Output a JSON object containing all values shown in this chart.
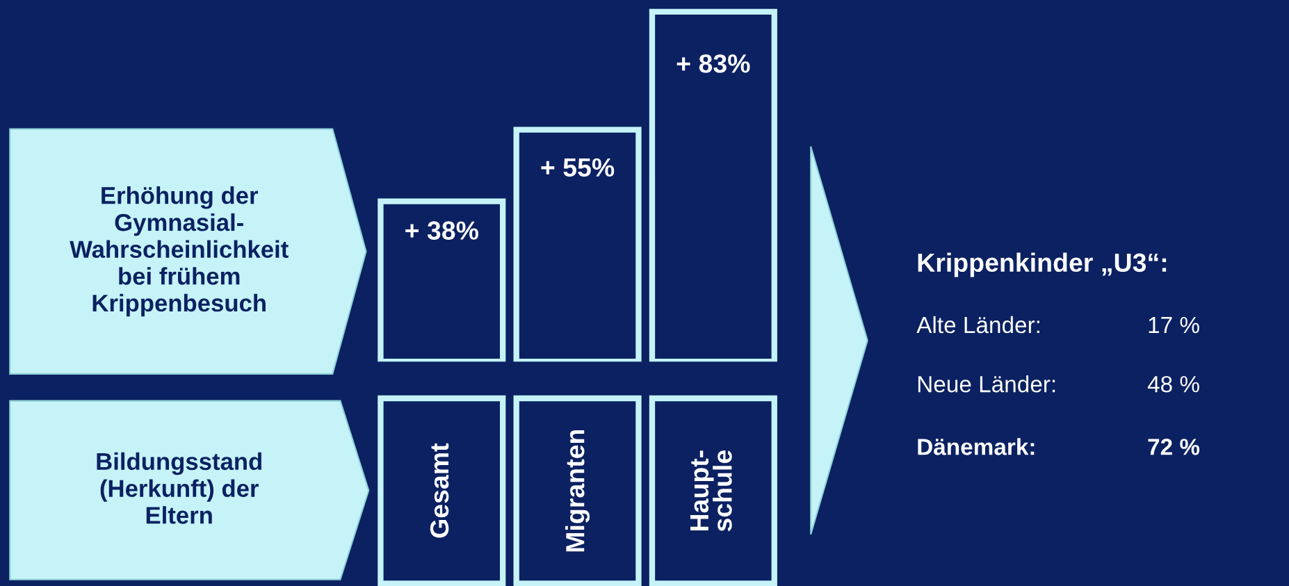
{
  "chart_data": {
    "type": "bar",
    "categories": [
      "Gesamt",
      "Migranten",
      "Haupt-\nschule"
    ],
    "values": [
      38,
      55,
      83
    ],
    "value_labels": [
      "+ 38%",
      "+ 55%",
      "+ 83%"
    ],
    "color": "#0b2161",
    "annotations": [
      "Erhöhung der\nGymnasial-\nWahrscheinlichkeit\nbei frühem\nKrippenbesuch",
      "Bildungsstand\n(Herkunft) der\nEltern",
      "Krippenkinder „U3“:",
      "Alte Länder:",
      "17 %",
      "Neue Länder:",
      "48 %",
      "Dänemark:",
      "72 %"
    ]
  }
}
